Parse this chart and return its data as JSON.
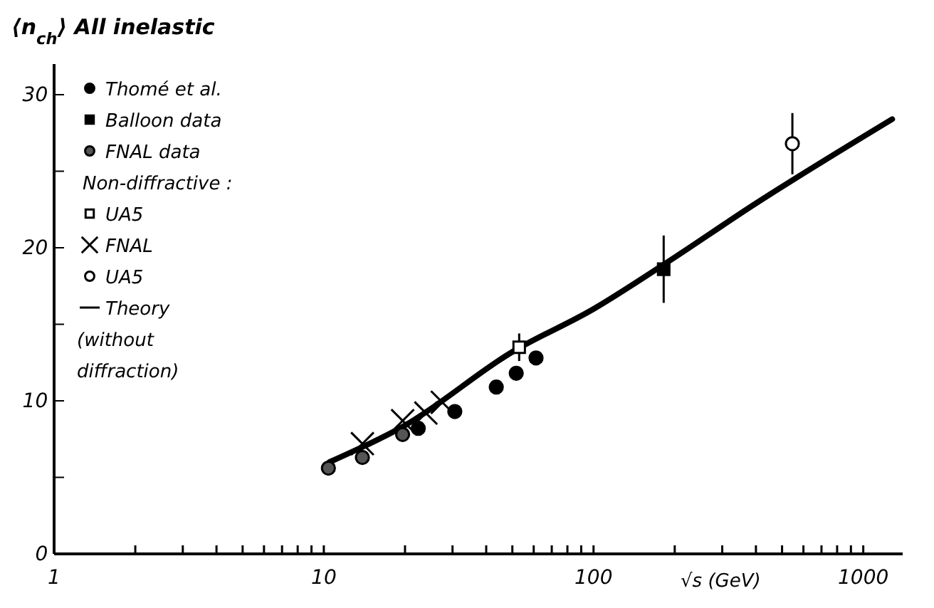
{
  "chart_data": {
    "type": "scatter",
    "ylabel": "⟨n$_{ch}$⟩ All inelastic",
    "xlabel": "√s (GeV)",
    "log": "x",
    "xlim": [
      1,
      1400
    ],
    "ylim": [
      0,
      32
    ],
    "xticks": [
      1,
      {
        "value": 2,
        "label": null
      },
      {
        "value": 3,
        "label": null
      },
      {
        "value": 4,
        "label": null
      },
      {
        "value": 5,
        "label": null
      },
      {
        "value": 6,
        "label": null
      },
      {
        "value": 7,
        "label": null
      },
      {
        "value": 8,
        "label": null
      },
      {
        "value": 9,
        "label": null
      },
      10,
      {
        "value": 20,
        "label": null
      },
      {
        "value": 30,
        "label": null
      },
      {
        "value": 40,
        "label": null
      },
      {
        "value": 50,
        "label": null
      },
      {
        "value": 60,
        "label": null
      },
      {
        "value": 70,
        "label": null
      },
      {
        "value": 80,
        "label": null
      },
      {
        "value": 90,
        "label": null
      },
      100,
      {
        "value": 200,
        "label": null
      },
      {
        "value": 300,
        "label": null
      },
      {
        "value": 400,
        "label": null
      },
      {
        "value": 500,
        "label": null
      },
      {
        "value": 600,
        "label": null
      },
      {
        "value": 700,
        "label": null
      },
      {
        "value": 800,
        "label": null
      },
      {
        "value": 900,
        "label": null
      },
      1000
    ],
    "yticks": [
      0,
      {
        "value": 5,
        "label": null
      },
      10,
      {
        "value": 15,
        "label": null
      },
      20,
      {
        "value": 25,
        "label": null
      },
      30
    ],
    "legend": "top left",
    "grid": false,
    "annotations": [
      "Non-diffractive :"
    ],
    "series": [
      {
        "name": "Thomé et al.",
        "color": "#000000",
        "marker": "circle",
        "x": [
          22.4,
          30.6,
          43.6,
          51.7,
          61.2
        ],
        "values": [
          8.2,
          9.3,
          10.9,
          11.8,
          12.8
        ]
      },
      {
        "name": "Balloon data",
        "color": "#000000",
        "marker": "square",
        "x": [
          182
        ],
        "values": [
          18.6
        ],
        "errors": [
          2.2
        ]
      },
      {
        "name": "FNAL data",
        "color": "#555555",
        "marker": "circle",
        "x": [
          10.4,
          13.9,
          19.6
        ],
        "values": [
          5.6,
          6.3,
          7.8
        ]
      },
      {
        "name": "UA5",
        "color": "#ffffff",
        "marker": "square",
        "x": [
          53
        ],
        "values": [
          13.5
        ],
        "errors": [
          0.9
        ]
      },
      {
        "name": "FNAL",
        "color": "#000000",
        "marker": "cross",
        "x": [
          13.9,
          19.6,
          23.9,
          27.5
        ],
        "values": [
          7.2,
          8.7,
          9.2,
          9.9
        ]
      },
      {
        "name": "UA5",
        "color": "#ffffff",
        "marker": "circle",
        "x": [
          546
        ],
        "values": [
          26.8
        ],
        "errors": [
          2
        ]
      },
      {
        "name": "Theory (without diffraction)",
        "type": "line",
        "color": "#000000",
        "x": [
          10.5,
          20,
          50,
          100,
          182,
          400,
          1280
        ],
        "values": [
          6.0,
          8.4,
          13.2,
          16.0,
          18.9,
          22.9,
          28.4
        ]
      }
    ]
  }
}
